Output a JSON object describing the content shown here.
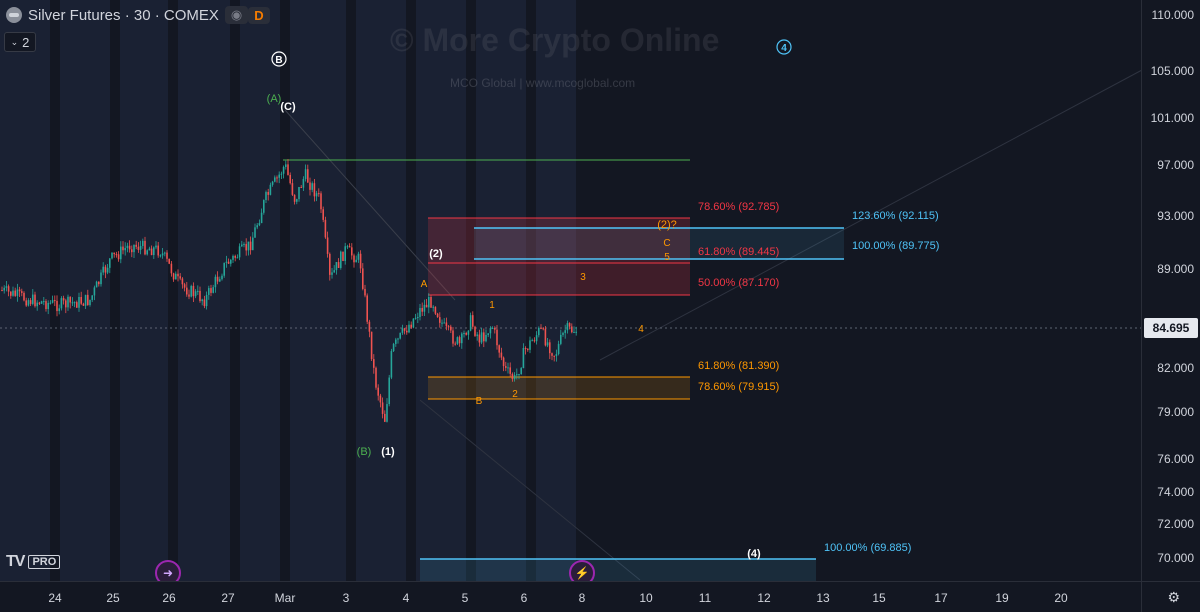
{
  "header": {
    "symbol_title": "Silver Futures · 30 · COMEX",
    "badge_eye": "◉",
    "badge_d": "D",
    "interval_count": "2"
  },
  "watermark": {
    "main": "© More Crypto Online",
    "sub": "MCO Global   |   www.mcoglobal.com"
  },
  "branding": {
    "logo_text": "TV",
    "pro_label": "PRO"
  },
  "y_axis": {
    "labels": [
      "110.000",
      "105.000",
      "101.000",
      "97.000",
      "93.000",
      "89.000",
      "84.695",
      "82.000",
      "79.000",
      "76.000",
      "74.000",
      "72.000",
      "70.000"
    ],
    "current_price": "84.695"
  },
  "x_axis": {
    "labels": [
      "24",
      "25",
      "26",
      "27",
      "Mar",
      "3",
      "4",
      "5",
      "6",
      "8",
      "10",
      "11",
      "12",
      "13",
      "15",
      "17",
      "19",
      "20"
    ]
  },
  "wave_labels": {
    "B_circled": "B",
    "A_green": "(A)",
    "C_white": "(C)",
    "B_green": "(B)",
    "one_white": "(1)",
    "two_white": "(2)",
    "two_q": "(2)?",
    "C_orange": "C",
    "five_orange": "5",
    "three_orange": "3",
    "A_orange": "A",
    "one_orange": "1",
    "four_orange": "4",
    "B_orange": "B",
    "two_orange": "2",
    "four_white": "(4)",
    "four_circled": "4"
  },
  "fib_levels": {
    "red_786": "78.60% (92.785)",
    "red_618": "61.80% (89.445)",
    "red_500": "50.00% (87.170)",
    "blue_1236": "123.60% (92.115)",
    "blue_100": "100.00% (89.775)",
    "orange_618": "61.80% (81.390)",
    "orange_786": "78.60% (79.915)",
    "blue_bottom_100": "100.00% (69.885)"
  },
  "colors": {
    "background": "#131722",
    "session_shade": "#1b2235",
    "candle_up": "#26a69a",
    "candle_down": "#ef5350",
    "fib_red": "#f23645",
    "fib_blue": "#4fc3f7",
    "fib_orange": "#ff9800",
    "wave_green": "#4caf50",
    "wave_orange": "#ff9800"
  }
}
